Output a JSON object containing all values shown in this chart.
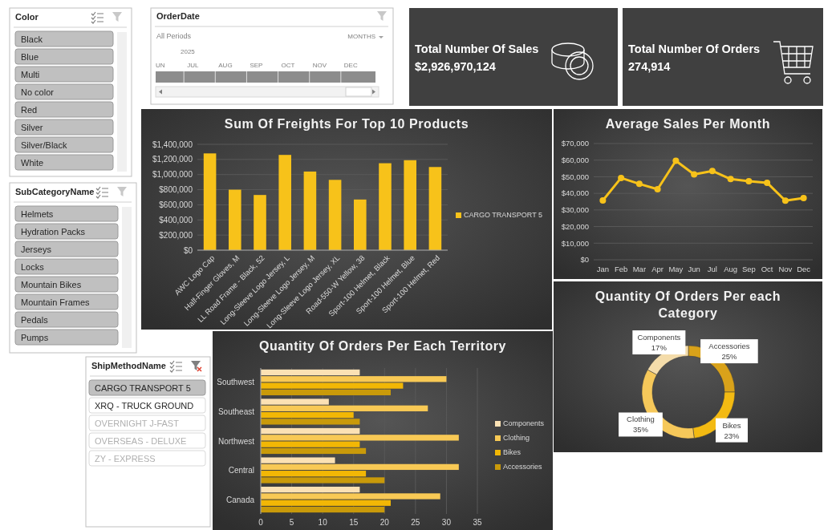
{
  "chart_data": [
    {
      "type": "other",
      "title": "Color",
      "annotations": [
        "Black",
        "Blue",
        "Multi",
        "No color",
        "Red",
        "Silver",
        "Silver/Black",
        "White"
      ]
    },
    {
      "type": "other",
      "title": "OrderDate",
      "annotations": [
        "All Periods",
        "MONTHS",
        "2025",
        "UN",
        "JUL",
        "AUG",
        "SEP",
        "OCT",
        "NOV",
        "DEC"
      ]
    },
    {
      "type": "other",
      "title": "Total Number Of Sales",
      "annotations": [
        "$2,926,970,124"
      ]
    },
    {
      "type": "other",
      "title": "Total Number Of Orders",
      "annotations": [
        "274,914"
      ]
    },
    {
      "type": "bar",
      "title": "Sum Of Freights For Top 10 Products",
      "categories": [
        "AWC Logo Cap",
        "Half-Finger Gloves, M",
        "LL Road Frame - Black, 52",
        "Long-Sleeve Logo Jersey, L",
        "Long-Sleeve Logo Jersey, M",
        "Long-Sleeve Logo Jersey, XL",
        "Road-550-W Yellow, 38",
        "Sport-100 Helmet, Black",
        "Sport-100 Helmet, Blue",
        "Sport-100 Helmet, Red"
      ],
      "series": [
        {
          "name": "CARGO TRANSPORT 5",
          "color": "#f7c21a",
          "values": [
            1280000,
            800000,
            730000,
            1260000,
            1040000,
            930000,
            670000,
            1150000,
            1190000,
            1100000
          ]
        }
      ],
      "ylim": [
        0,
        1400000
      ],
      "yticks": [
        {
          "value": 0,
          "label": "$0"
        },
        {
          "value": 200000,
          "label": "$200,000"
        },
        {
          "value": 400000,
          "label": "$400,000"
        },
        {
          "value": 600000,
          "label": "$600,000"
        },
        {
          "value": 800000,
          "label": "$800,000"
        },
        {
          "value": 1000000,
          "label": "$1,000,000"
        },
        {
          "value": 1200000,
          "label": "$1,200,000"
        },
        {
          "value": 1400000,
          "label": "$1,400,000"
        }
      ],
      "grid": "y",
      "legend": "right"
    },
    {
      "type": "line",
      "title": "Average Sales Per Month",
      "categories": [
        "Jan",
        "Feb",
        "Mar",
        "Apr",
        "May",
        "Jun",
        "Jul",
        "Aug",
        "Sep",
        "Oct",
        "Nov",
        "Dec"
      ],
      "values": [
        35700,
        49300,
        45700,
        42500,
        59600,
        51400,
        53500,
        48600,
        47300,
        46400,
        35600,
        37200
      ],
      "color": "#f7c21a",
      "ylim": [
        0,
        70000
      ],
      "yticks": [
        {
          "value": 0,
          "label": "$0"
        },
        {
          "value": 10000,
          "label": "$10,000"
        },
        {
          "value": 20000,
          "label": "$20,000"
        },
        {
          "value": 30000,
          "label": "$30,000"
        },
        {
          "value": 40000,
          "label": "$40,000"
        },
        {
          "value": 50000,
          "label": "$50,000"
        },
        {
          "value": 60000,
          "label": "$60,000"
        },
        {
          "value": 70000,
          "label": "$70,000"
        }
      ],
      "grid": "y",
      "marker": "circle"
    },
    {
      "type": "other",
      "title": "SubCategoryName",
      "annotations": [
        "Helmets",
        "Hydration Packs",
        "Jerseys",
        "Locks",
        "Mountain Bikes",
        "Mountain Frames",
        "Pedals",
        "Pumps"
      ]
    },
    {
      "type": "donut",
      "title": "Quantity Of Orders Per each Category",
      "categories": [
        "Accessories",
        "Bikes",
        "Clothing",
        "Components"
      ],
      "values": [
        25,
        23,
        35,
        17
      ],
      "colors": [
        "#d9a21a",
        "#f3ba12",
        "#f6c85a",
        "#f4dcaa"
      ],
      "value_labels": [
        "25%",
        "23%",
        "35%",
        "17%"
      ]
    },
    {
      "type": "other",
      "title": "ShipMethodName",
      "annotations": [
        "CARGO TRANSPORT 5",
        "XRQ - TRUCK GROUND",
        "OVERNIGHT J-FAST",
        "OVERSEAS - DELUXE",
        "ZY - EXPRESS"
      ]
    },
    {
      "type": "bar",
      "orientation": "horizontal",
      "title": "Quantity Of Orders Per Each Territory",
      "categories": [
        "Southwest",
        "Southeast",
        "Northwest",
        "Central",
        "Canada"
      ],
      "series": [
        {
          "name": "Components",
          "color": "#fbe1b4",
          "values": [
            16,
            11,
            16,
            12,
            16
          ]
        },
        {
          "name": "Clothing",
          "color": "#f8c955",
          "values": [
            30,
            27,
            32,
            32,
            29
          ]
        },
        {
          "name": "Bikes",
          "color": "#f2b705",
          "values": [
            23,
            15,
            16,
            17,
            21
          ]
        },
        {
          "name": "Accessories",
          "color": "#c99a0a",
          "values": [
            21,
            16,
            17,
            20,
            20
          ]
        }
      ],
      "xlim": [
        0,
        35
      ],
      "xticks": [
        0,
        5,
        10,
        15,
        20,
        25,
        30,
        35
      ],
      "grid": "x",
      "legend": "right"
    }
  ]
}
